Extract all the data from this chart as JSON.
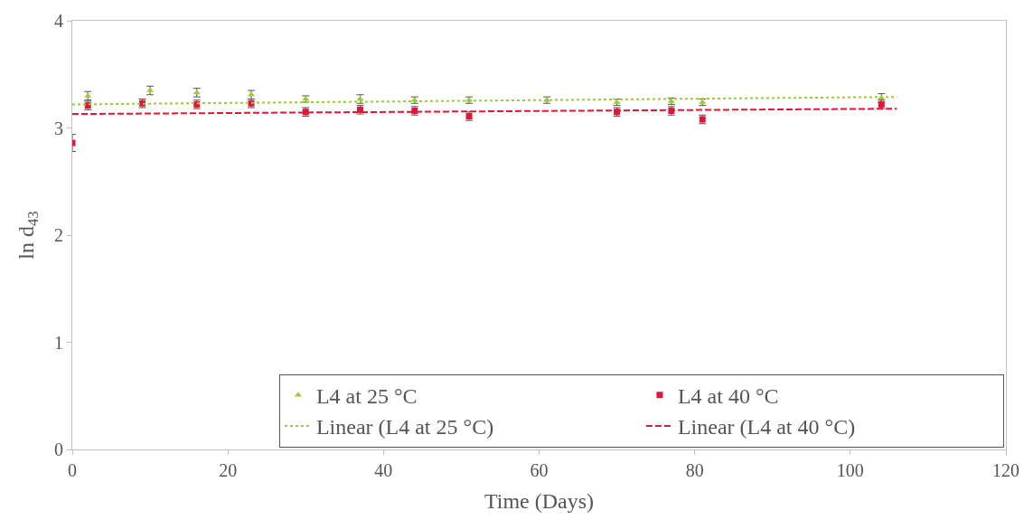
{
  "chart_data": {
    "type": "scatter",
    "xlabel": "Time (Days)",
    "ylabel": "ln d$_{43}$",
    "xlim": [
      0,
      120
    ],
    "xticks": [
      0,
      20,
      40,
      60,
      80,
      100,
      120
    ],
    "ylim": [
      0,
      4
    ],
    "yticks": [
      0,
      1,
      2,
      3,
      4
    ],
    "legend": "bottom right",
    "series": [
      {
        "name": "L4 at 25 °C",
        "color": "#9acd32",
        "marker": "triangle",
        "x": [
          2,
          10,
          16,
          23,
          30,
          37,
          44,
          51,
          61,
          70,
          77,
          81,
          104
        ],
        "values": [
          3.3,
          3.35,
          3.33,
          3.31,
          3.27,
          3.27,
          3.26,
          3.26,
          3.26,
          3.24,
          3.25,
          3.24,
          3.28
        ],
        "errors": [
          0.04,
          0.04,
          0.04,
          0.04,
          0.03,
          0.04,
          0.03,
          0.03,
          0.03,
          0.03,
          0.03,
          0.03,
          0.04
        ]
      },
      {
        "name": "L4 at 40 °C",
        "color": "#e0173a",
        "marker": "square",
        "x": [
          0,
          2,
          9,
          16,
          23,
          30,
          37,
          44,
          51,
          70,
          77,
          81,
          104
        ],
        "values": [
          2.86,
          3.21,
          3.23,
          3.22,
          3.23,
          3.15,
          3.17,
          3.16,
          3.11,
          3.15,
          3.16,
          3.08,
          3.22
        ],
        "errors": [
          0.08,
          0.04,
          0.04,
          0.04,
          0.04,
          0.04,
          0.04,
          0.04,
          0.04,
          0.04,
          0.04,
          0.04,
          0.04
        ]
      },
      {
        "name": "Linear (L4 at 25 °C)",
        "type": "line",
        "color": "#9acd32",
        "line_style": "dotted",
        "marker": "none",
        "x": [
          0,
          106
        ],
        "values": [
          3.22,
          3.29
        ]
      },
      {
        "name": "Linear (L4 at 40 °C)",
        "type": "line",
        "color": "#e0173a",
        "line_style": "dashed",
        "marker": "none",
        "x": [
          0,
          106
        ],
        "values": [
          3.13,
          3.18
        ]
      }
    ]
  }
}
